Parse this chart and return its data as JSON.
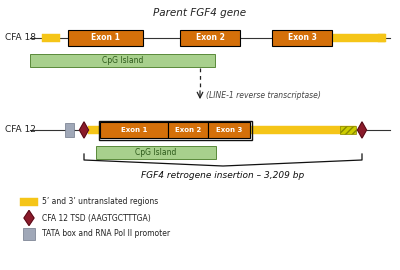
{
  "title": "Parent FGF4 gene",
  "bg_color": "#ffffff",
  "exon_color": "#d4700a",
  "exon_border": "#000000",
  "cpg_color": "#a8d08d",
  "cpg_border": "#5a8a3a",
  "utr_color": "#f5c518",
  "utr_border": "#d4a000",
  "line_color": "#333333",
  "tsd_color": "#8b1a2a",
  "tata_color": "#a0a8b8",
  "tata_border": "#707888",
  "cfa18_label": "CFA 18",
  "cfa12_label": "CFA 12",
  "exon_labels": [
    "Exon 1",
    "Exon 2",
    "Exon 3"
  ],
  "cpg_label": "CpG Island",
  "arrow_label": "(LINE-1 reverse transcriptase)",
  "retrogene_label": "FGF4 retrogene insertion – 3,209 bp",
  "legend_utr": "5’ and 3’ untranslated regions",
  "legend_tsd": "CFA 12 TSD (AAGTGCTTTGA)",
  "legend_tata": "TATA box and RNA Pol II promoter"
}
